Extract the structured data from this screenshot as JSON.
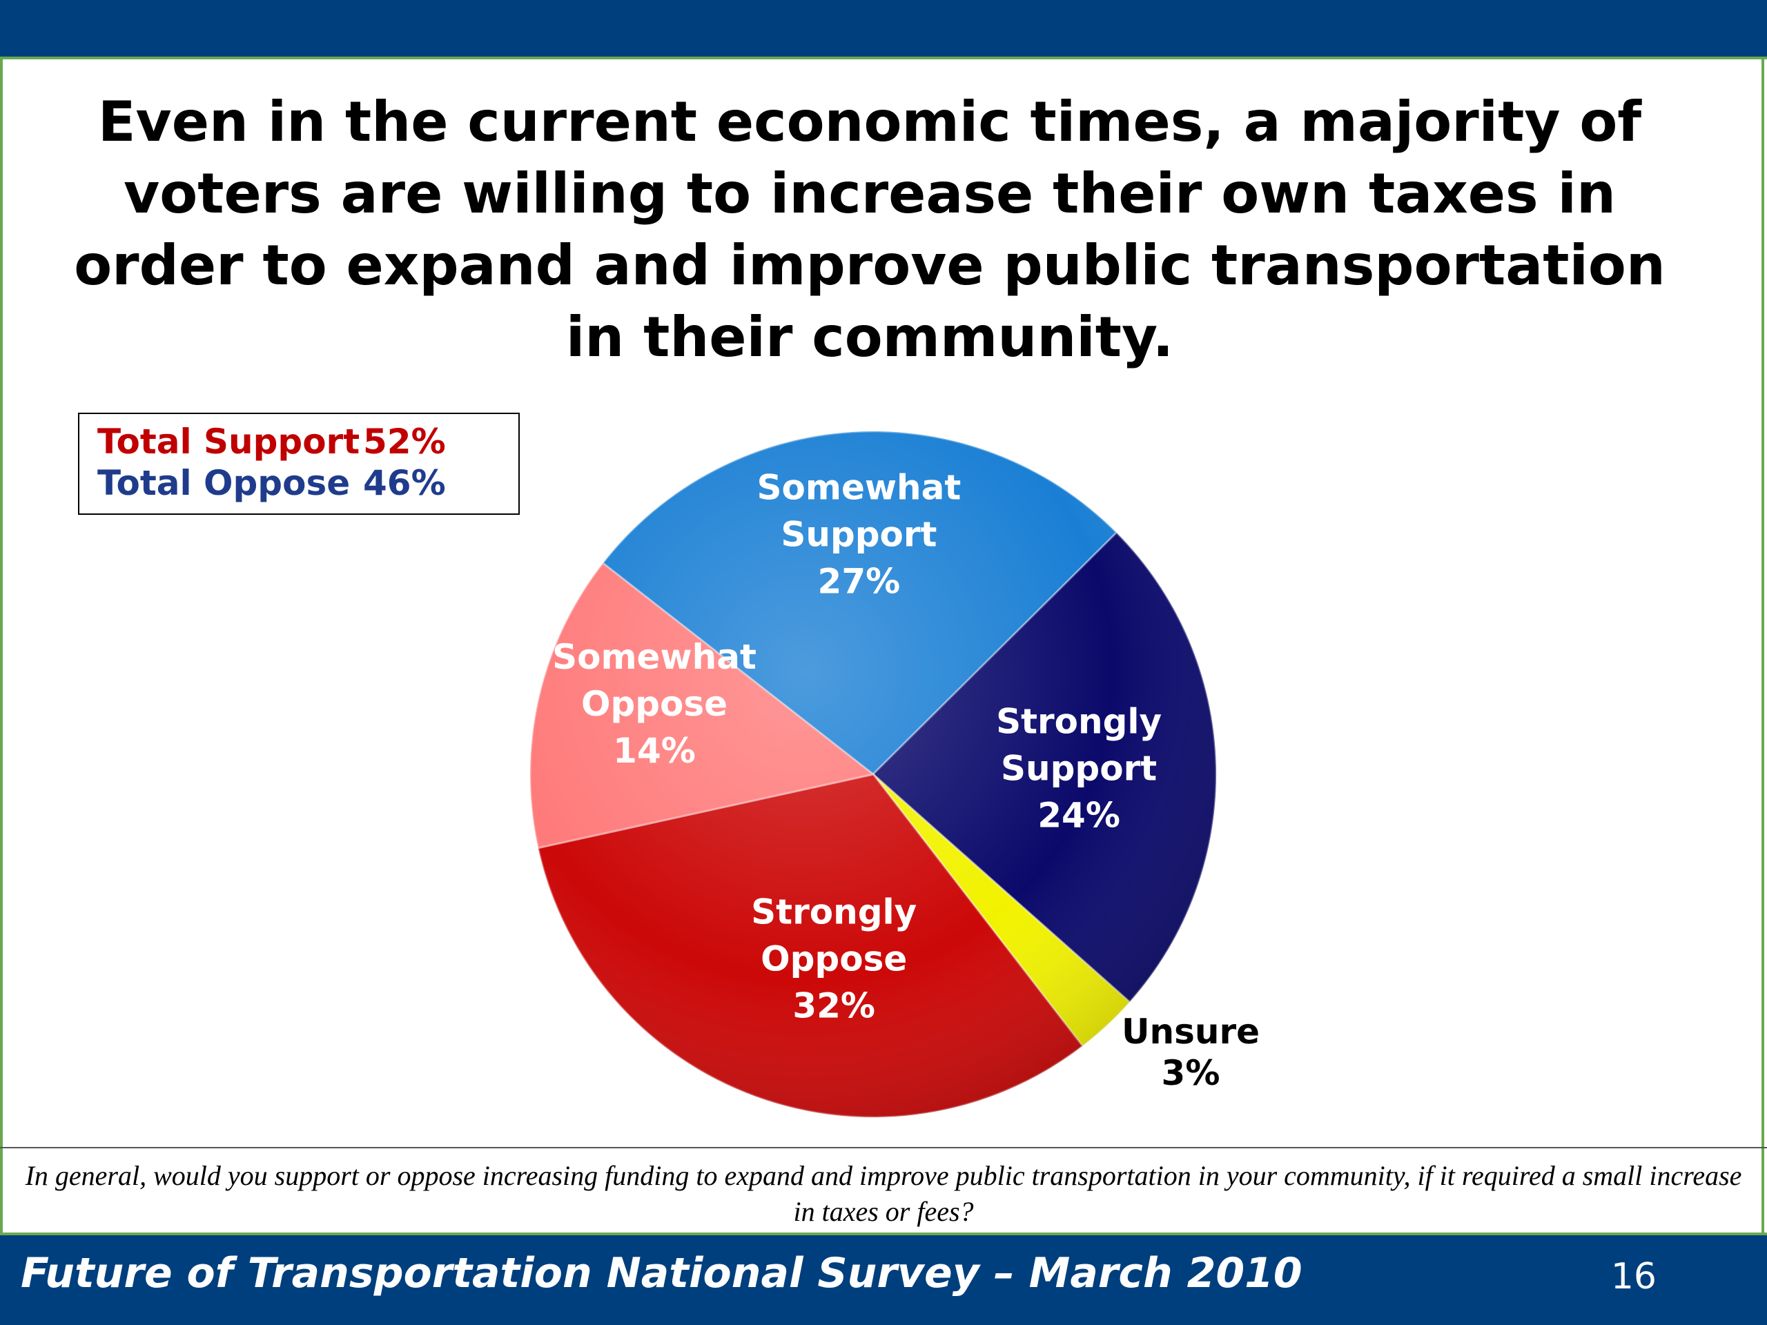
{
  "slide": {
    "title": "Even in the current economic times, a majority of voters are willing to increase their own taxes in order to expand and improve public transportation in their community.",
    "question": "In general, would you support or oppose increasing funding to expand and improve public transportation in your community, if it required a small increase in taxes or fees?",
    "footer_title": "Future of Transportation National Survey – March 2010",
    "page_number": "16"
  },
  "totals": {
    "support_label": "Total Support",
    "support_value": "52%",
    "oppose_label": "Total Oppose",
    "oppose_value": "46%"
  },
  "colors": {
    "banner": "#003f7d",
    "accent_border": "#6aa84f",
    "support_text": "#c00000",
    "oppose_text": "#1f3c8c"
  },
  "chart_data": {
    "type": "pie",
    "title": "",
    "start_angle_deg": -52,
    "direction": "clockwise",
    "slices": [
      {
        "label": [
          "Somewhat",
          "Support",
          "27%"
        ],
        "name": "Somewhat Support",
        "value": 27,
        "color": "#1a7fd4",
        "label_color": "#ffffff"
      },
      {
        "label": [
          "Strongly",
          "Support",
          "24%"
        ],
        "name": "Strongly Support",
        "value": 24,
        "color": "#0b0a6b",
        "label_color": "#ffffff"
      },
      {
        "label": [
          "Unsure",
          "3%"
        ],
        "name": "Unsure",
        "value": 3,
        "color": "#f2f200",
        "label_color": "#000000"
      },
      {
        "label": [
          "Strongly",
          "Oppose",
          "32%"
        ],
        "name": "Strongly Oppose",
        "value": 32,
        "color": "#cc0808",
        "label_color": "#ffffff"
      },
      {
        "label": [
          "Somewhat",
          "Oppose",
          "14%"
        ],
        "name": "Somewhat Oppose",
        "value": 14,
        "color": "#ff7a7a",
        "label_color": "#ffffff"
      }
    ]
  }
}
